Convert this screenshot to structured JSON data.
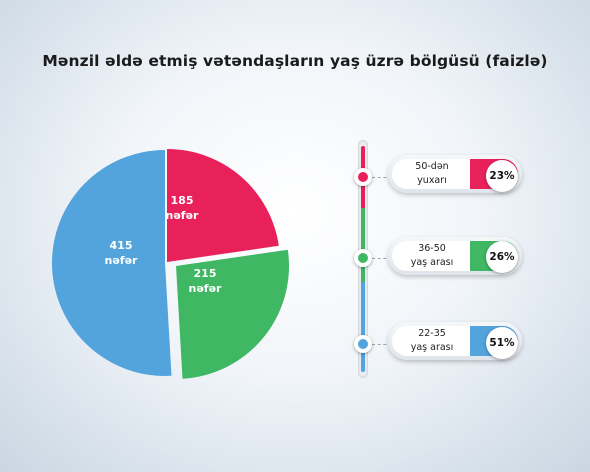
{
  "title": "Mənzil əldə etmiş vətəndaşların yaş üzrə bölgüsü (faizlə)",
  "chart_data": [
    {
      "type": "pie",
      "slices": [
        {
          "value": 185,
          "label": "185",
          "unit": "nəfər",
          "color": "#e8215a"
        },
        {
          "value": 215,
          "label": "215",
          "unit": "nəfər",
          "color": "#40b763"
        },
        {
          "value": 415,
          "label": "415",
          "unit": "nəfər",
          "color": "#53a3dd"
        }
      ]
    },
    {
      "type": "bar",
      "categories": [
        "50-dən yuxarı",
        "36-50 yaş arası",
        "22-35 yaş arası"
      ],
      "values": [
        23,
        26,
        51
      ],
      "value_labels": [
        "23%",
        "26%",
        "51%"
      ],
      "colors": [
        "#e8215a",
        "#40b763",
        "#53a3dd"
      ]
    }
  ],
  "legend": [
    {
      "line1": "50-dən",
      "line2": "yuxarı",
      "pct": "23%"
    },
    {
      "line1": "36-50",
      "line2": "yaş arası",
      "pct": "26%"
    },
    {
      "line1": "22-35",
      "line2": "yaş arası",
      "pct": "51%"
    }
  ]
}
